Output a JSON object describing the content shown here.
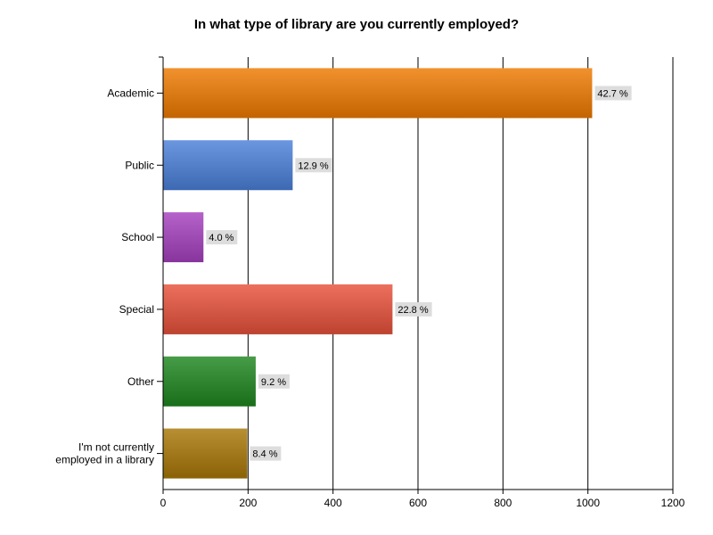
{
  "chart_data": {
    "type": "bar",
    "orientation": "horizontal",
    "title": "In what type of library are you currently employed?",
    "categories": [
      "Academic",
      "Public",
      "School",
      "Special",
      "Other",
      "I'm not currently employed in a library"
    ],
    "category_label_lines": [
      [
        "Academic"
      ],
      [
        "Public"
      ],
      [
        "School"
      ],
      [
        "Special"
      ],
      [
        "Other"
      ],
      [
        "I'm not currently",
        "employed in a library"
      ]
    ],
    "values": [
      1010,
      305,
      95,
      540,
      218,
      198
    ],
    "percent_labels": [
      "42.7 %",
      "12.9 %",
      "4.0 %",
      "22.8 %",
      "9.2 %",
      "8.4 %"
    ],
    "colors": [
      "#ee7a00",
      "#4a7fd9",
      "#a640c0",
      "#e8503a",
      "#1e861e",
      "#a87806"
    ],
    "xlim": [
      0,
      1200
    ],
    "x_ticks": [
      0,
      200,
      400,
      600,
      800,
      1000,
      1200
    ],
    "xlabel": "",
    "ylabel": "",
    "grid": "vertical",
    "legend": "none"
  }
}
